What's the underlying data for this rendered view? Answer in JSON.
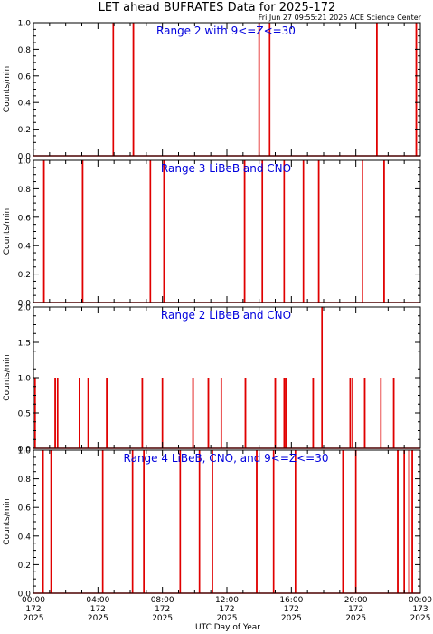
{
  "title": "LET ahead BUFRATES Data for 2025-172",
  "timestamp": "Fri Jun 27 09:55:21 2025 ACE Science Center",
  "xlabel": "UTC Day of Year",
  "colors": {
    "trace": "#e00000",
    "label": "#0000dd",
    "axis": "#000000"
  },
  "chart_data": [
    {
      "type": "line",
      "title": "Range 2 with 9<=Z<=30",
      "ylabel": "Counts/min",
      "ylim": [
        0,
        1.0
      ],
      "yticks": [
        0.0,
        0.2,
        0.4,
        0.6,
        0.8,
        1.0
      ],
      "xlim_hours": [
        0,
        24
      ],
      "spikes": [
        {
          "hour": 4.95,
          "value": 1
        },
        {
          "hour": 6.2,
          "value": 1
        },
        {
          "hour": 14.0,
          "value": 1
        },
        {
          "hour": 14.65,
          "value": 1
        },
        {
          "hour": 21.3,
          "value": 1
        },
        {
          "hour": 23.75,
          "value": 1
        }
      ]
    },
    {
      "type": "line",
      "title": "Range 3 LiBeB and CNO",
      "ylabel": "Counts/min",
      "ylim": [
        0,
        1.0
      ],
      "yticks": [
        0.0,
        0.2,
        0.4,
        0.6,
        0.8,
        1.0
      ],
      "xlim_hours": [
        0,
        24
      ],
      "spikes": [
        {
          "hour": 0.65,
          "value": 1
        },
        {
          "hour": 3.05,
          "value": 1
        },
        {
          "hour": 7.25,
          "value": 1
        },
        {
          "hour": 8.1,
          "value": 1
        },
        {
          "hour": 13.1,
          "value": 1
        },
        {
          "hour": 14.2,
          "value": 1
        },
        {
          "hour": 15.55,
          "value": 1
        },
        {
          "hour": 16.75,
          "value": 1
        },
        {
          "hour": 17.7,
          "value": 1
        },
        {
          "hour": 20.4,
          "value": 1
        },
        {
          "hour": 21.75,
          "value": 1
        }
      ]
    },
    {
      "type": "line",
      "title": "Range 2 LiBeB and CNO",
      "ylabel": "Counts/min",
      "ylim": [
        0,
        2.0
      ],
      "yticks": [
        0.0,
        0.5,
        1.0,
        1.5,
        2.0
      ],
      "xlim_hours": [
        0,
        24
      ],
      "spikes": [
        {
          "hour": 0.1,
          "value": 1
        },
        {
          "hour": 1.35,
          "value": 1
        },
        {
          "hour": 1.5,
          "value": 1
        },
        {
          "hour": 2.85,
          "value": 1
        },
        {
          "hour": 3.4,
          "value": 1
        },
        {
          "hour": 4.55,
          "value": 1
        },
        {
          "hour": 6.75,
          "value": 1
        },
        {
          "hour": 8.0,
          "value": 1
        },
        {
          "hour": 9.9,
          "value": 1
        },
        {
          "hour": 10.85,
          "value": 1
        },
        {
          "hour": 11.65,
          "value": 1
        },
        {
          "hour": 13.15,
          "value": 1
        },
        {
          "hour": 15.0,
          "value": 1
        },
        {
          "hour": 15.55,
          "value": 1
        },
        {
          "hour": 15.65,
          "value": 1
        },
        {
          "hour": 17.35,
          "value": 1
        },
        {
          "hour": 17.9,
          "value": 2
        },
        {
          "hour": 19.65,
          "value": 1
        },
        {
          "hour": 19.8,
          "value": 1
        },
        {
          "hour": 20.55,
          "value": 1
        },
        {
          "hour": 21.55,
          "value": 1
        },
        {
          "hour": 22.35,
          "value": 1
        }
      ]
    },
    {
      "type": "line",
      "title": "Range 4 LiBeB, CNO, and 9<=Z<=30",
      "ylabel": "Counts/min",
      "ylim": [
        0,
        1.0
      ],
      "yticks": [
        0.0,
        0.2,
        0.4,
        0.6,
        0.8,
        1.0
      ],
      "xlim_hours": [
        0,
        24
      ],
      "spikes": [
        {
          "hour": 0.6,
          "value": 1
        },
        {
          "hour": 1.1,
          "value": 1
        },
        {
          "hour": 4.3,
          "value": 1
        },
        {
          "hour": 6.15,
          "value": 1
        },
        {
          "hour": 6.85,
          "value": 1
        },
        {
          "hour": 9.1,
          "value": 1
        },
        {
          "hour": 10.3,
          "value": 1
        },
        {
          "hour": 11.1,
          "value": 1
        },
        {
          "hour": 13.85,
          "value": 1
        },
        {
          "hour": 14.9,
          "value": 1
        },
        {
          "hour": 16.25,
          "value": 1
        },
        {
          "hour": 19.2,
          "value": 1
        },
        {
          "hour": 20.0,
          "value": 1
        },
        {
          "hour": 22.6,
          "value": 1
        },
        {
          "hour": 23.0,
          "value": 1
        },
        {
          "hour": 23.3,
          "value": 1
        },
        {
          "hour": 23.5,
          "value": 1
        }
      ]
    }
  ],
  "xticks": [
    {
      "hour": 0,
      "time": "00:00",
      "doy": "172",
      "year": "2025"
    },
    {
      "hour": 4,
      "time": "04:00",
      "doy": "172",
      "year": "2025"
    },
    {
      "hour": 8,
      "time": "08:00",
      "doy": "172",
      "year": "2025"
    },
    {
      "hour": 12,
      "time": "12:00",
      "doy": "172",
      "year": "2025"
    },
    {
      "hour": 16,
      "time": "16:00",
      "doy": "172",
      "year": "2025"
    },
    {
      "hour": 20,
      "time": "20:00",
      "doy": "172",
      "year": "2025"
    },
    {
      "hour": 24,
      "time": "00:00",
      "doy": "173",
      "year": "2025"
    }
  ]
}
